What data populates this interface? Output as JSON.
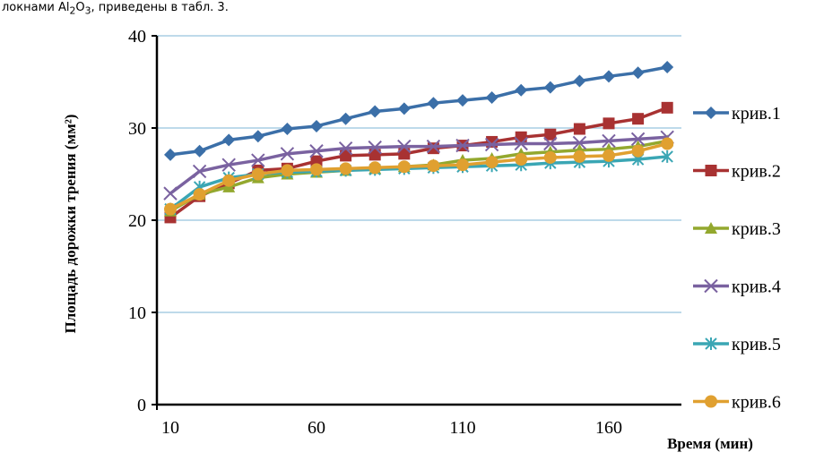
{
  "caption": {
    "pre": "локнами Al",
    "sub1": "2",
    "mid": "O",
    "sub2": "3",
    "post": ", приведены в табл. 3."
  },
  "chart_data": {
    "type": "line",
    "title": "",
    "xlabel": "Время (мин)",
    "ylabel": "Площадь дорожки трения (мм²)",
    "x": [
      10,
      20,
      30,
      40,
      50,
      60,
      70,
      80,
      90,
      100,
      110,
      120,
      130,
      140,
      150,
      160,
      170,
      180
    ],
    "xticks": [
      10,
      60,
      110,
      160
    ],
    "yticks": [
      0,
      10,
      20,
      30,
      40
    ],
    "ylim": [
      0,
      40
    ],
    "grid": true,
    "legend": "right",
    "series": [
      {
        "name": "крив.1",
        "color": "#3B6FA8",
        "marker": "diamond",
        "values": [
          27.1,
          27.5,
          28.7,
          29.1,
          29.9,
          30.2,
          31.0,
          31.8,
          32.1,
          32.7,
          33.0,
          33.3,
          34.1,
          34.4,
          35.1,
          35.6,
          36.0,
          36.6
        ]
      },
      {
        "name": "крив.2",
        "color": "#A83232",
        "marker": "square",
        "values": [
          20.3,
          22.6,
          24.0,
          25.4,
          25.6,
          26.4,
          27.0,
          27.1,
          27.2,
          27.8,
          28.1,
          28.5,
          29.0,
          29.3,
          29.9,
          30.5,
          31.0,
          32.2
        ]
      },
      {
        "name": "крив.3",
        "color": "#93A82E",
        "marker": "triangle",
        "values": [
          21.0,
          22.8,
          23.6,
          24.6,
          25.0,
          25.2,
          25.4,
          25.6,
          25.8,
          26.0,
          26.5,
          26.7,
          27.2,
          27.4,
          27.6,
          27.7,
          28.0,
          28.6
        ]
      },
      {
        "name": "крив.4",
        "color": "#7A62A0",
        "marker": "x",
        "values": [
          22.9,
          25.3,
          26.0,
          26.5,
          27.2,
          27.5,
          27.8,
          27.9,
          28.0,
          28.0,
          28.1,
          28.2,
          28.3,
          28.3,
          28.4,
          28.6,
          28.8,
          29.0
        ]
      },
      {
        "name": "крив.5",
        "color": "#3AA6B4",
        "marker": "asterisk",
        "values": [
          21.2,
          23.6,
          24.6,
          25.0,
          25.2,
          25.3,
          25.4,
          25.5,
          25.6,
          25.7,
          25.8,
          25.9,
          26.0,
          26.2,
          26.3,
          26.4,
          26.6,
          26.9
        ]
      },
      {
        "name": "крив.6",
        "color": "#E0A030",
        "marker": "circle",
        "values": [
          21.2,
          22.8,
          24.3,
          25.0,
          25.4,
          25.5,
          25.6,
          25.7,
          25.8,
          25.9,
          26.0,
          26.3,
          26.6,
          26.8,
          26.9,
          27.0,
          27.5,
          28.3
        ]
      }
    ]
  }
}
